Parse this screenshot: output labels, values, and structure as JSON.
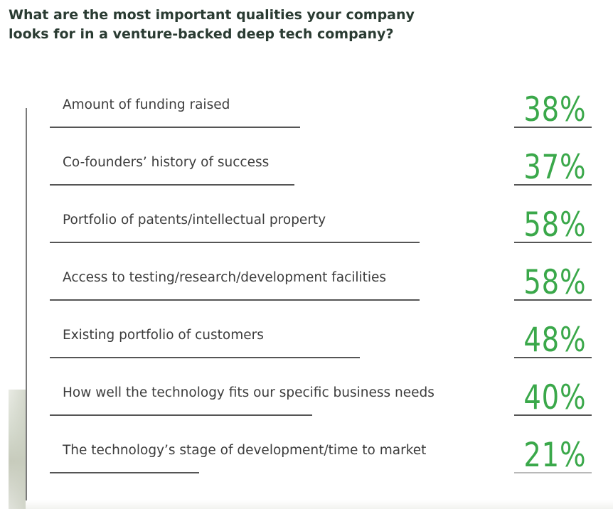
{
  "question": {
    "line1": "What are the most important qualities your company",
    "line2": "looks for in a venture-backed deep tech company?"
  },
  "colors": {
    "accent": "#3aa84a",
    "title": "#2a3b32",
    "text": "#3c3c3c",
    "rule": "#555555"
  },
  "chart_data": {
    "type": "bar",
    "title": "What are the most important qualities your company looks for in a venture-backed deep tech company?",
    "orientation": "horizontal",
    "unit": "%",
    "categories": [
      "Amount of funding raised",
      "Co-founders’ history of success",
      "Portfolio of patents/intellectual property",
      "Access to testing/research/development facilities",
      "Existing portfolio of customers",
      "How well the technology fits our specific business needs",
      "The technology’s stage of development/time to market"
    ],
    "values": [
      38,
      37,
      58,
      58,
      48,
      40,
      21
    ],
    "value_labels": [
      "38%",
      "37%",
      "58%",
      "58%",
      "48%",
      "40%",
      "21%"
    ],
    "grid": false,
    "legend": "none"
  }
}
